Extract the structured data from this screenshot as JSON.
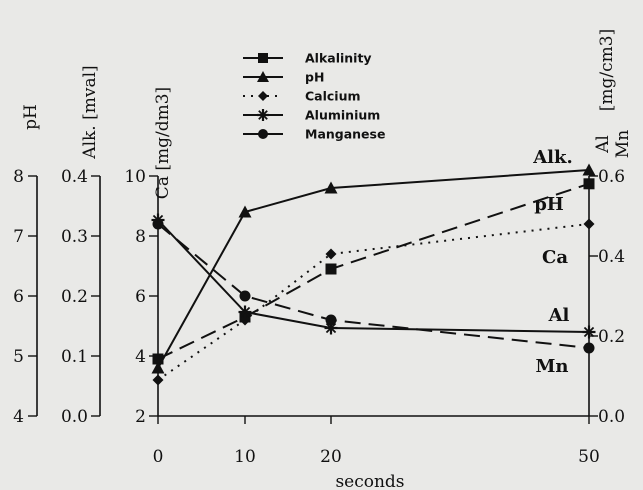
{
  "chart_data": {
    "type": "line",
    "xlabel": "seconds",
    "x": [
      0,
      10,
      20,
      50
    ],
    "x_ticks": [
      "0",
      "10",
      "20",
      "50"
    ],
    "axes": [
      {
        "id": "pH",
        "title": "pH",
        "min": 4,
        "max": 8,
        "ticks": [
          "4",
          "5",
          "6",
          "7",
          "8"
        ]
      },
      {
        "id": "alk",
        "title": "Alk. [mval]",
        "min": 0,
        "max": 0.4,
        "ticks": [
          "0.0",
          "0.1",
          "0.2",
          "0.3",
          "0.4"
        ]
      },
      {
        "id": "ca",
        "title": "Ca [mg/dm3]",
        "min": 2,
        "max": 10,
        "ticks": [
          "2",
          "4",
          "6",
          "8",
          "10"
        ]
      },
      {
        "id": "mn",
        "title": "Al Mn [mg/cm3]",
        "title_lines": [
          "Al",
          "Mn"
        ],
        "title_unit": "[mg/cm3]",
        "min": 0,
        "max": 0.6,
        "ticks": [
          "0.0",
          "0.2",
          "0.4",
          "0.6"
        ]
      }
    ],
    "series": [
      {
        "name": "Alkalinity",
        "axis": "alk",
        "marker": "square",
        "dash": "long-dash",
        "values": [
          0.095,
          0.165,
          0.245,
          0.387
        ]
      },
      {
        "name": "pH",
        "axis": "pH",
        "marker": "triangle",
        "dash": "solid",
        "values": [
          4.8,
          7.4,
          7.8,
          8.1
        ]
      },
      {
        "name": "Calcium",
        "axis": "ca",
        "marker": "diamond",
        "dash": "dotted",
        "values": [
          3.2,
          5.2,
          7.4,
          8.4
        ]
      },
      {
        "name": "Aluminium",
        "axis": "mn",
        "marker": "star",
        "dash": "solid",
        "values": [
          0.49,
          0.26,
          0.22,
          0.21
        ]
      },
      {
        "name": "Manganese",
        "axis": "mn",
        "marker": "circle",
        "dash": "long-dash",
        "values": [
          0.48,
          0.3,
          0.24,
          0.17
        ]
      }
    ],
    "end_labels": [
      "Alk.",
      "pH",
      "Ca",
      "Al",
      "Mn"
    ],
    "legend_position": "top-center",
    "grid": false
  }
}
